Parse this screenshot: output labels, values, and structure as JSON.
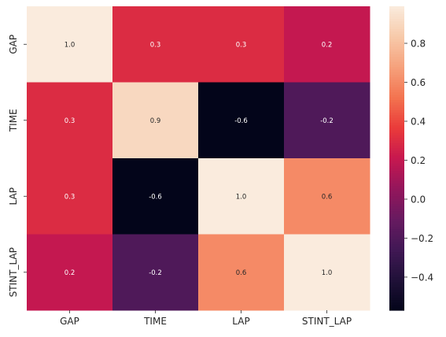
{
  "chart_data": {
    "type": "heatmap",
    "categories": [
      "GAP",
      "TIME",
      "LAP",
      "STINT_LAP"
    ],
    "rows": [
      "GAP",
      "TIME",
      "LAP",
      "STINT_LAP"
    ],
    "values": [
      [
        1.0,
        0.3,
        0.3,
        0.2
      ],
      [
        0.3,
        0.9,
        -0.6,
        -0.2
      ],
      [
        0.3,
        -0.6,
        1.0,
        0.6
      ],
      [
        0.2,
        -0.2,
        0.6,
        1.0
      ]
    ],
    "cell_labels": [
      [
        "1.0",
        "0.3",
        "0.3",
        "0.2"
      ],
      [
        "0.3",
        "0.9",
        "-0.6",
        "-0.2"
      ],
      [
        "0.3",
        "-0.6",
        "1.0",
        "0.6"
      ],
      [
        "0.2",
        "-0.2",
        "0.6",
        "1.0"
      ]
    ],
    "colorbar": {
      "range": [
        -0.57,
        0.99
      ],
      "ticks": [
        -0.4,
        -0.2,
        0.0,
        0.2,
        0.4,
        0.6,
        0.8
      ],
      "tick_labels": [
        "−0.4",
        "−0.2",
        "0.0",
        "0.2",
        "0.4",
        "0.6",
        "0.8"
      ],
      "colormap": "rocket"
    }
  }
}
